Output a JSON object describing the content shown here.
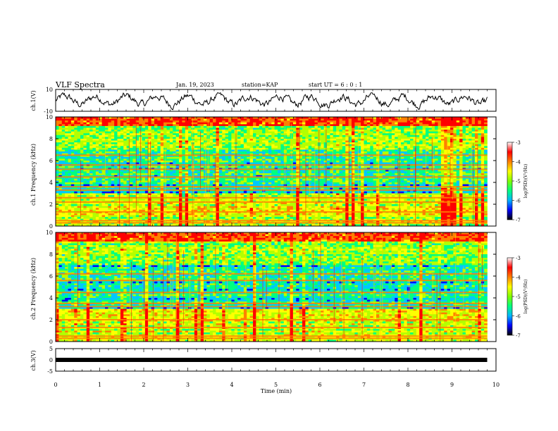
{
  "header": {
    "title": "VLF Spectra",
    "date": "Jan. 19, 2023",
    "station": "station=KAP",
    "start": "start UT =  6 : 0 : 1"
  },
  "colors": {
    "trace": "#000000",
    "colormap": [
      "#000080",
      "#0000ff",
      "#00c8ff",
      "#00ff80",
      "#b4ff00",
      "#ffff00",
      "#ff8000",
      "#ff0000",
      "#ffffff"
    ]
  },
  "chart_data": [
    {
      "type": "line",
      "name": "ch1-waveform",
      "ylabel": "ch.1(V)",
      "xlim": [
        0,
        10
      ],
      "ylim": [
        -10,
        10
      ],
      "yticks": [
        "10",
        "-10"
      ],
      "x_end": 9.8
    },
    {
      "type": "heatmap",
      "name": "ch1-spectrogram",
      "ylabel": "ch.1 Frequency (kHz)",
      "xlim": [
        0,
        10
      ],
      "ylim": [
        0,
        10
      ],
      "yticks": [
        "0",
        "2",
        "4",
        "6",
        "8",
        "10"
      ],
      "x_end": 9.8,
      "line_bands_khz": [
        0.3,
        0.5,
        1.3,
        2.2,
        2.6,
        3.3,
        3.6,
        4.5,
        5.2,
        5.6,
        6.5
      ],
      "colorbar": {
        "label": "log(PSD)(V²/Hz)",
        "range": [
          -7,
          -3
        ],
        "ticks": [
          "-3",
          "-4",
          "-5",
          "-6",
          "-7"
        ]
      }
    },
    {
      "type": "heatmap",
      "name": "ch2-spectrogram",
      "ylabel": "ch.2 Frequency (kHz)",
      "xlim": [
        0,
        10
      ],
      "ylim": [
        0,
        10
      ],
      "yticks": [
        "0",
        "2",
        "4",
        "6",
        "8",
        "10"
      ],
      "x_end": 9.8,
      "line_bands_khz": [
        0.3,
        0.5,
        1.3,
        2.0,
        3.2,
        3.5,
        4.5,
        5.6,
        6.2
      ],
      "colorbar": {
        "label": "log(PSD)(V²/Hz)",
        "range": [
          -7,
          -3
        ],
        "ticks": [
          "-3",
          "-4",
          "-5",
          "-6",
          "-7"
        ]
      }
    },
    {
      "type": "line",
      "name": "ch3-trace",
      "ylabel": "ch.3(V)",
      "xlim": [
        0,
        10
      ],
      "ylim": [
        -5,
        5
      ],
      "yticks": [
        "5",
        "0",
        "-5"
      ],
      "x_end": 9.8,
      "value": 0
    }
  ],
  "xaxis": {
    "label": "Time (min)",
    "ticks": [
      "0",
      "1",
      "2",
      "3",
      "4",
      "5",
      "6",
      "7",
      "8",
      "9",
      "10"
    ]
  }
}
